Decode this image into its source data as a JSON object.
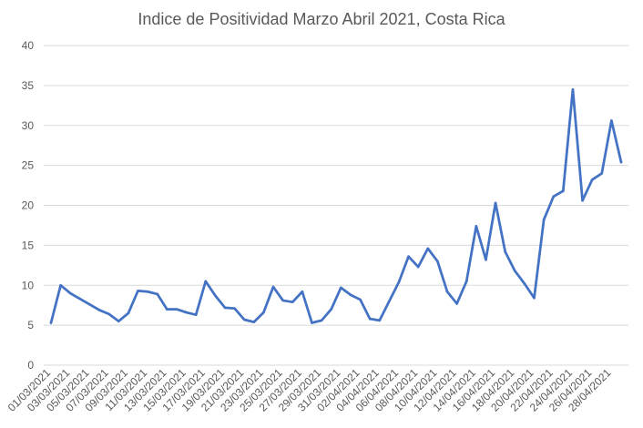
{
  "chart_data": {
    "type": "line",
    "title": "Indice de Positividad Marzo Abril 2021, Costa Rica",
    "xlabel": "",
    "ylabel": "",
    "ylim": [
      0,
      40
    ],
    "yticks": [
      "0",
      "5",
      "10",
      "15",
      "20",
      "25",
      "30",
      "35",
      "40"
    ],
    "grid": true,
    "legend": "none",
    "line_color": "#4472c4",
    "x_tick_labels": [
      "01/03/2021",
      "03/03/2021",
      "05/03/2021",
      "07/03/2021",
      "09/03/2021",
      "11/03/2021",
      "13/03/2021",
      "15/03/2021",
      "17/03/2021",
      "19/03/2021",
      "21/03/2021",
      "23/03/2021",
      "25/03/2021",
      "27/03/2021",
      "29/03/2021",
      "31/03/2021",
      "02/04/2021",
      "04/04/2021",
      "06/04/2021",
      "08/04/2021",
      "10/04/2021",
      "12/04/2021",
      "14/04/2021",
      "16/04/2021",
      "18/04/2021",
      "20/04/2021",
      "22/04/2021",
      "24/04/2021",
      "26/04/2021",
      "28/04/2021"
    ],
    "x": [
      "2021-03-01",
      "2021-03-02",
      "2021-03-03",
      "2021-03-04",
      "2021-03-05",
      "2021-03-06",
      "2021-03-07",
      "2021-03-08",
      "2021-03-09",
      "2021-03-10",
      "2021-03-11",
      "2021-03-12",
      "2021-03-13",
      "2021-03-14",
      "2021-03-15",
      "2021-03-16",
      "2021-03-17",
      "2021-03-18",
      "2021-03-19",
      "2021-03-20",
      "2021-03-21",
      "2021-03-22",
      "2021-03-23",
      "2021-03-24",
      "2021-03-25",
      "2021-03-26",
      "2021-03-27",
      "2021-03-28",
      "2021-03-29",
      "2021-03-30",
      "2021-03-31",
      "2021-04-01",
      "2021-04-02",
      "2021-04-03",
      "2021-04-04",
      "2021-04-05",
      "2021-04-06",
      "2021-04-07",
      "2021-04-08",
      "2021-04-09",
      "2021-04-10",
      "2021-04-11",
      "2021-04-12",
      "2021-04-13",
      "2021-04-14",
      "2021-04-15",
      "2021-04-16",
      "2021-04-17",
      "2021-04-18",
      "2021-04-19",
      "2021-04-20",
      "2021-04-21",
      "2021-04-22",
      "2021-04-23",
      "2021-04-24",
      "2021-04-25",
      "2021-04-26",
      "2021-04-27",
      "2021-04-28",
      "2021-04-29"
    ],
    "series": [
      {
        "values": [
          5.3,
          10.0,
          9.0,
          8.3,
          7.6,
          6.9,
          6.4,
          5.5,
          6.5,
          9.3,
          9.2,
          8.9,
          7.0,
          7.0,
          6.6,
          6.3,
          10.5,
          8.7,
          7.2,
          7.1,
          5.7,
          5.4,
          6.6,
          9.8,
          8.1,
          7.9,
          9.2,
          5.3,
          5.6,
          7.0,
          9.7,
          8.8,
          8.2,
          5.8,
          5.6,
          8.0,
          10.4,
          13.6,
          12.3,
          14.6,
          13.0,
          9.2,
          7.7,
          10.5,
          17.4,
          13.2,
          20.3,
          14.2,
          11.8,
          10.2,
          8.4,
          18.2,
          21.1,
          21.8,
          34.5,
          20.6,
          23.2,
          24.0,
          30.6,
          25.4
        ]
      }
    ]
  }
}
